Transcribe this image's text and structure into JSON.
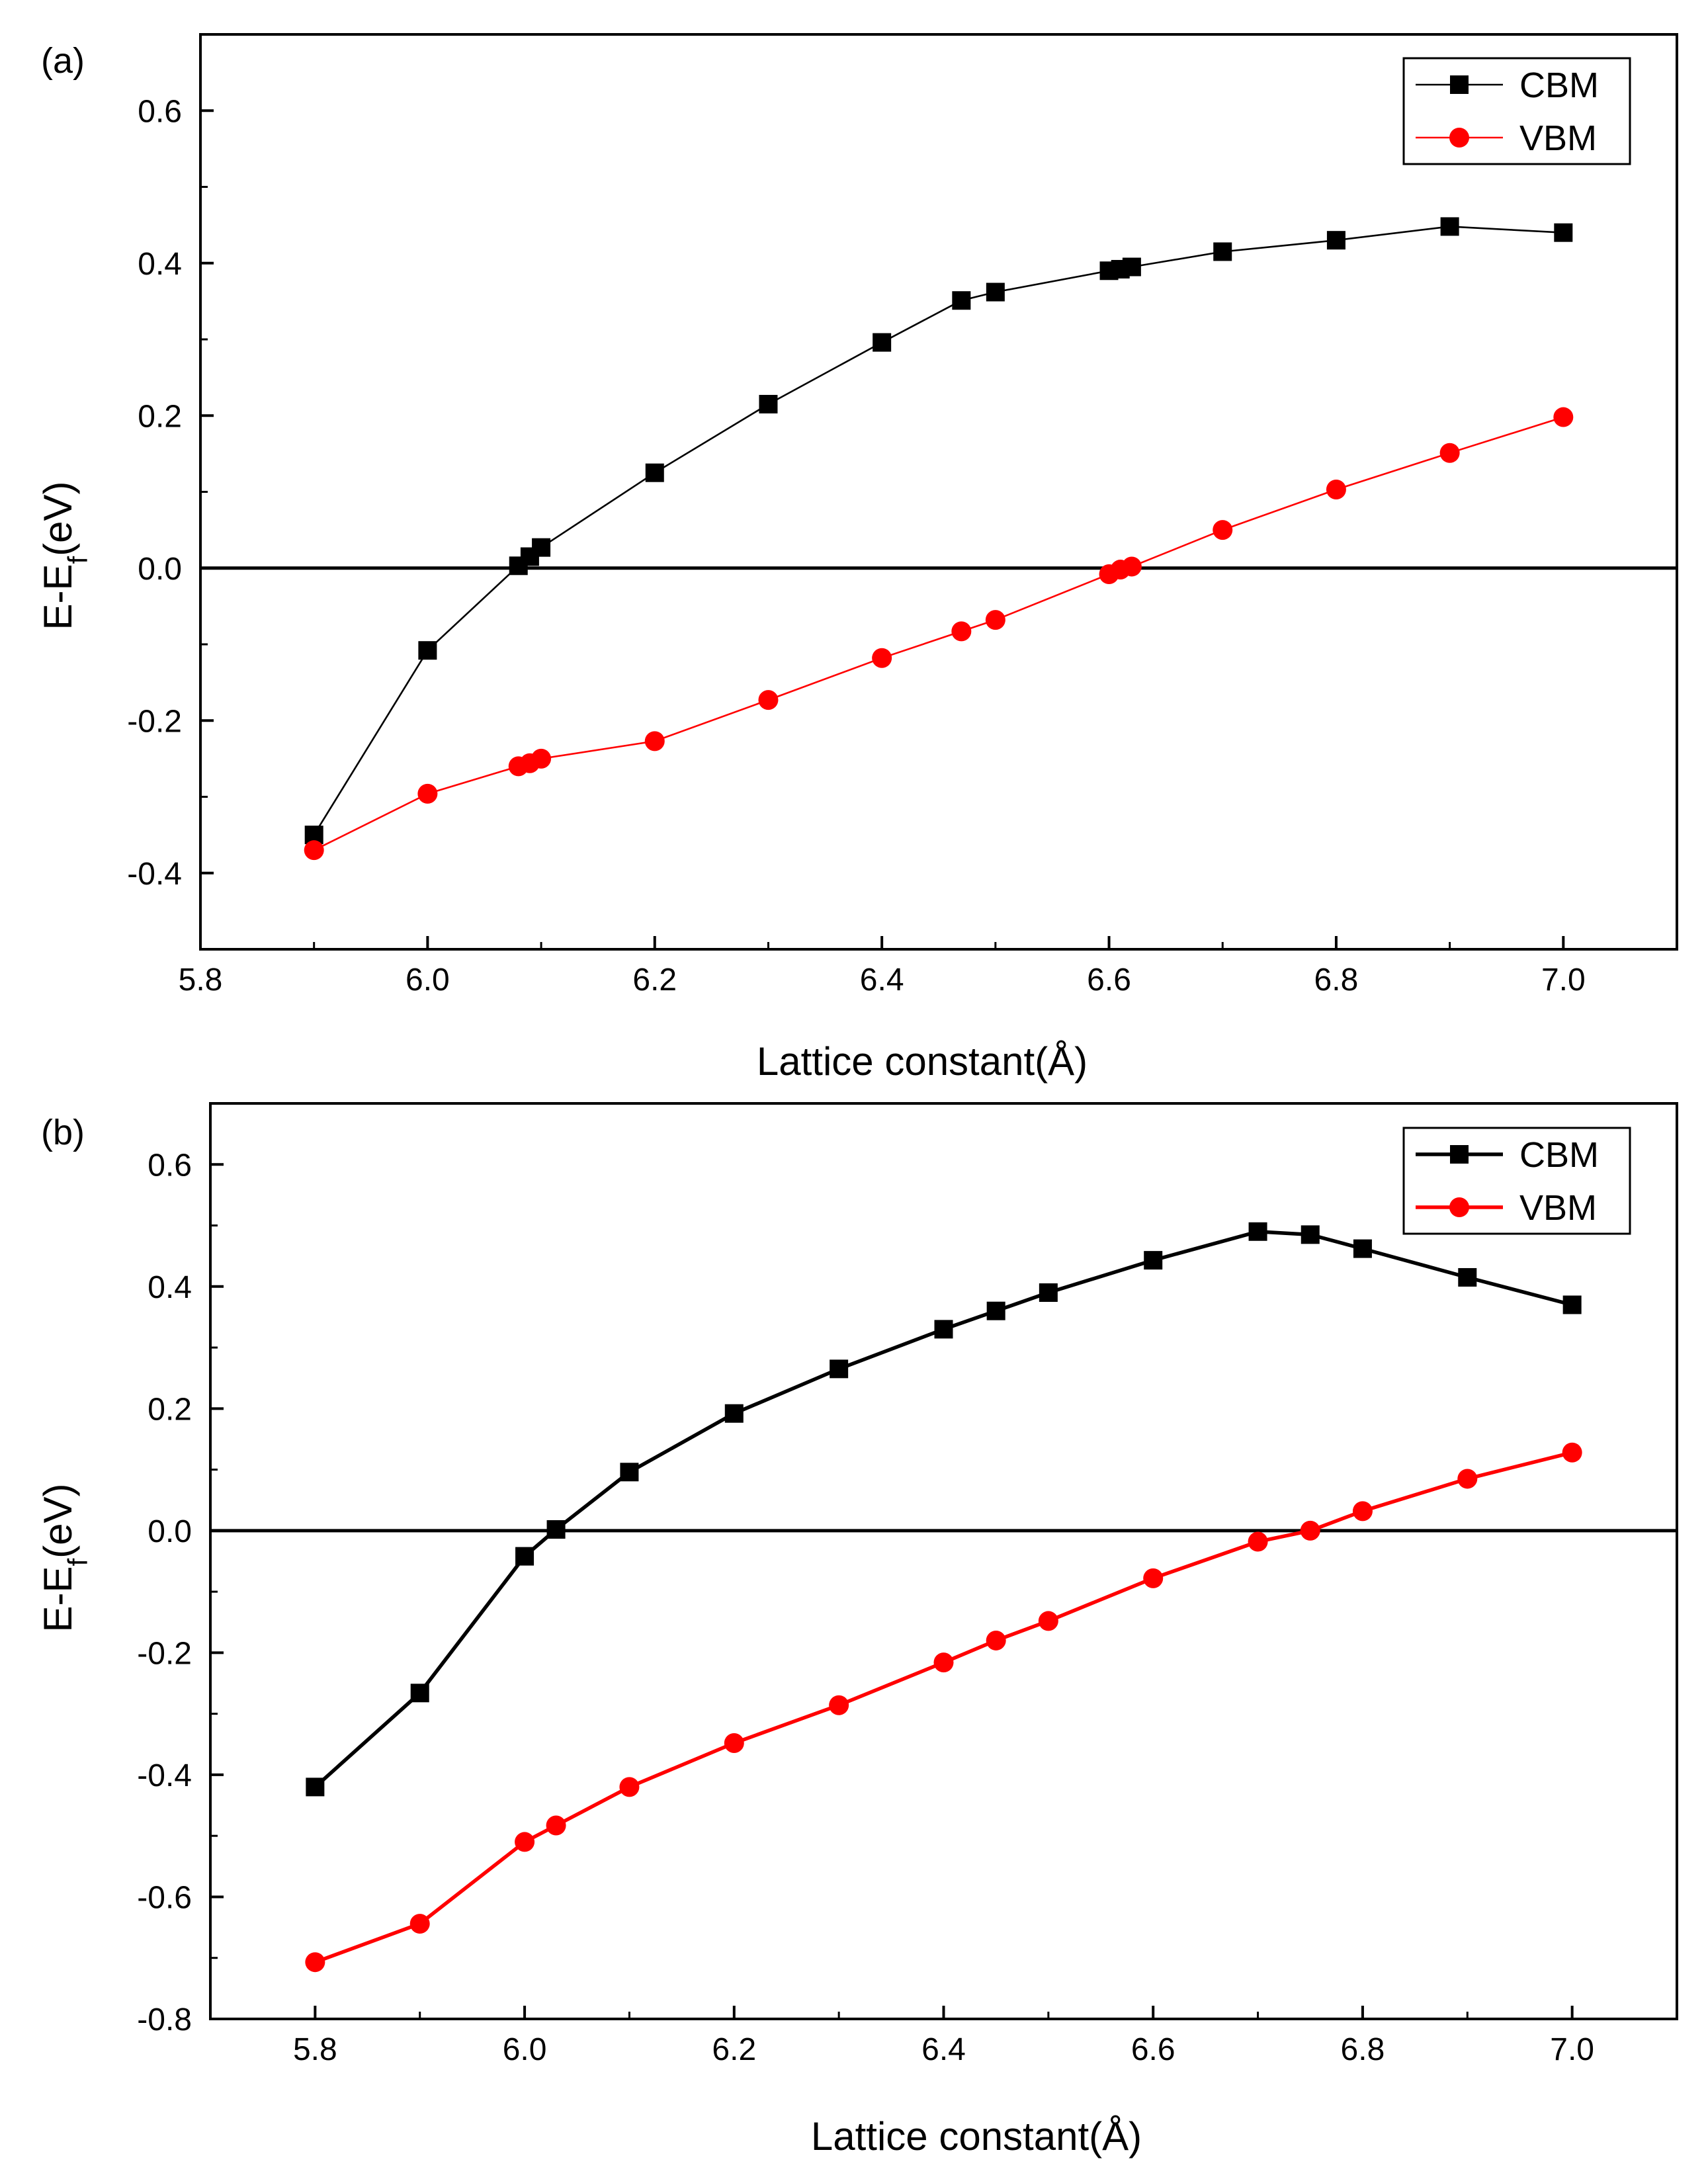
{
  "chart_data": [
    {
      "panel_label": "(a)",
      "type": "line",
      "xlabel": "Lattice constant(Å)",
      "ylabel": "E-E",
      "ylabel_sub": "f",
      "ylabel_suffix": "(eV)",
      "xlim": [
        5.8,
        7.1
      ],
      "ylim": [
        -0.5,
        0.7
      ],
      "xticks": [
        5.8,
        6.0,
        6.2,
        6.4,
        6.6,
        6.8,
        7.0
      ],
      "xtick_labels": [
        "5.8",
        "6.0",
        "6.2",
        "6.4",
        "6.6",
        "6.8",
        "7.0"
      ],
      "yticks": [
        -0.4,
        -0.2,
        0.0,
        0.2,
        0.4,
        0.6
      ],
      "ytick_labels": [
        "-0.4",
        "-0.2",
        "0.0",
        "0.2",
        "0.4",
        "0.6"
      ],
      "zero_line": true,
      "legend_position": "top-right",
      "series": [
        {
          "name": "CBM",
          "color": "#000000",
          "marker": "square",
          "x": [
            5.9,
            6.0,
            6.08,
            6.09,
            6.1,
            6.2,
            6.3,
            6.4,
            6.47,
            6.5,
            6.6,
            6.61,
            6.62,
            6.7,
            6.8,
            6.9,
            7.0
          ],
          "values": [
            -0.35,
            -0.108,
            0.003,
            0.015,
            0.027,
            0.125,
            0.215,
            0.296,
            0.351,
            0.362,
            0.39,
            0.392,
            0.395,
            0.415,
            0.43,
            0.448,
            0.44
          ]
        },
        {
          "name": "VBM",
          "color": "#ff0000",
          "marker": "circle",
          "x": [
            5.9,
            6.0,
            6.08,
            6.09,
            6.1,
            6.2,
            6.3,
            6.4,
            6.47,
            6.5,
            6.6,
            6.61,
            6.62,
            6.7,
            6.8,
            6.9,
            7.0
          ],
          "values": [
            -0.37,
            -0.296,
            -0.26,
            -0.256,
            -0.25,
            -0.227,
            -0.173,
            -0.118,
            -0.083,
            -0.068,
            -0.008,
            -0.002,
            0.002,
            0.05,
            0.103,
            0.151,
            0.198
          ]
        }
      ]
    },
    {
      "panel_label": "(b)",
      "type": "line",
      "xlabel": "Lattice constant(Å)",
      "ylabel": "E-E",
      "ylabel_sub": "f",
      "ylabel_suffix": "(eV)",
      "xlim": [
        5.7,
        7.1
      ],
      "ylim": [
        -0.8,
        0.7
      ],
      "xticks": [
        5.8,
        6.0,
        6.2,
        6.4,
        6.6,
        6.8,
        7.0
      ],
      "xtick_labels": [
        "5.8",
        "6.0",
        "6.2",
        "6.4",
        "6.6",
        "6.8",
        "7.0"
      ],
      "yticks": [
        -0.8,
        -0.6,
        -0.4,
        -0.2,
        0.0,
        0.2,
        0.4,
        0.6
      ],
      "ytick_labels": [
        "-0.8",
        "-0.6",
        "-0.4",
        "-0.2",
        "0.0",
        "0.2",
        "0.4",
        "0.6"
      ],
      "zero_line": true,
      "legend_position": "top-right",
      "series": [
        {
          "name": "CBM",
          "color": "#000000",
          "marker": "square",
          "x": [
            5.8,
            5.9,
            6.0,
            6.03,
            6.1,
            6.2,
            6.3,
            6.4,
            6.45,
            6.5,
            6.6,
            6.7,
            6.75,
            6.8,
            6.9,
            7.0
          ],
          "values": [
            -0.42,
            -0.266,
            -0.042,
            0.002,
            0.096,
            0.192,
            0.265,
            0.33,
            0.36,
            0.39,
            0.443,
            0.49,
            0.485,
            0.462,
            0.415,
            0.37
          ]
        },
        {
          "name": "VBM",
          "color": "#ff0000",
          "marker": "circle",
          "x": [
            5.8,
            5.9,
            6.0,
            6.03,
            6.1,
            6.2,
            6.3,
            6.4,
            6.45,
            6.5,
            6.6,
            6.7,
            6.75,
            6.8,
            6.9,
            7.0
          ],
          "values": [
            -0.707,
            -0.644,
            -0.51,
            -0.483,
            -0.42,
            -0.348,
            -0.286,
            -0.216,
            -0.18,
            -0.148,
            -0.078,
            -0.018,
            0.0,
            0.032,
            0.085,
            0.128
          ]
        }
      ]
    }
  ]
}
